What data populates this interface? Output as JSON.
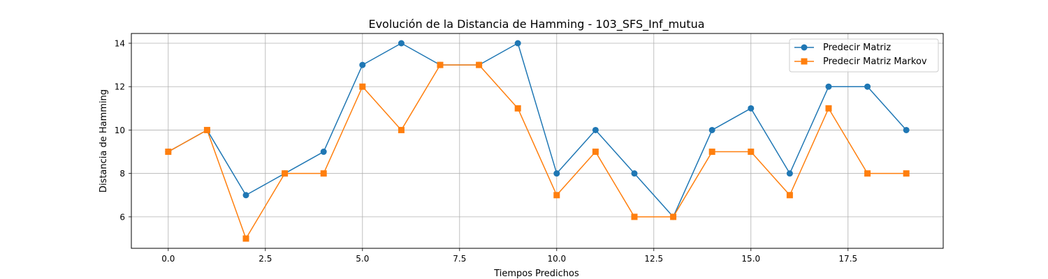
{
  "chart_data": {
    "type": "line",
    "title": "Evolución de la Distancia de Hamming - 103_SFS_Inf_mutua",
    "xlabel": "Tiempos Predichos",
    "ylabel": "Distancia de Hamming",
    "xlim": [
      -0.95,
      19.95
    ],
    "ylim": [
      4.55,
      14.45
    ],
    "xticks": [
      0.0,
      2.5,
      5.0,
      7.5,
      10.0,
      12.5,
      15.0,
      17.5
    ],
    "xtick_labels": [
      "0.0",
      "2.5",
      "5.0",
      "7.5",
      "10.0",
      "12.5",
      "15.0",
      "17.5"
    ],
    "yticks": [
      6,
      8,
      10,
      12,
      14
    ],
    "ytick_labels": [
      "6",
      "8",
      "10",
      "12",
      "14"
    ],
    "grid": true,
    "legend_position": "top-right",
    "x": [
      0,
      1,
      2,
      3,
      4,
      5,
      6,
      7,
      8,
      9,
      10,
      11,
      12,
      13,
      14,
      15,
      16,
      17,
      18,
      19
    ],
    "series": [
      {
        "name": "Predecir Matriz",
        "color": "#1f77b4",
        "marker": "circle",
        "values": [
          9,
          10,
          7,
          8,
          9,
          13,
          14,
          13,
          13,
          14,
          8,
          10,
          8,
          6,
          10,
          11,
          8,
          12,
          12,
          10
        ]
      },
      {
        "name": "Predecir Matriz Markov",
        "color": "#ff7f0e",
        "marker": "square",
        "values": [
          9,
          10,
          5,
          8,
          8,
          12,
          10,
          13,
          13,
          11,
          7,
          9,
          6,
          6,
          9,
          9,
          7,
          11,
          8,
          8
        ]
      }
    ]
  }
}
